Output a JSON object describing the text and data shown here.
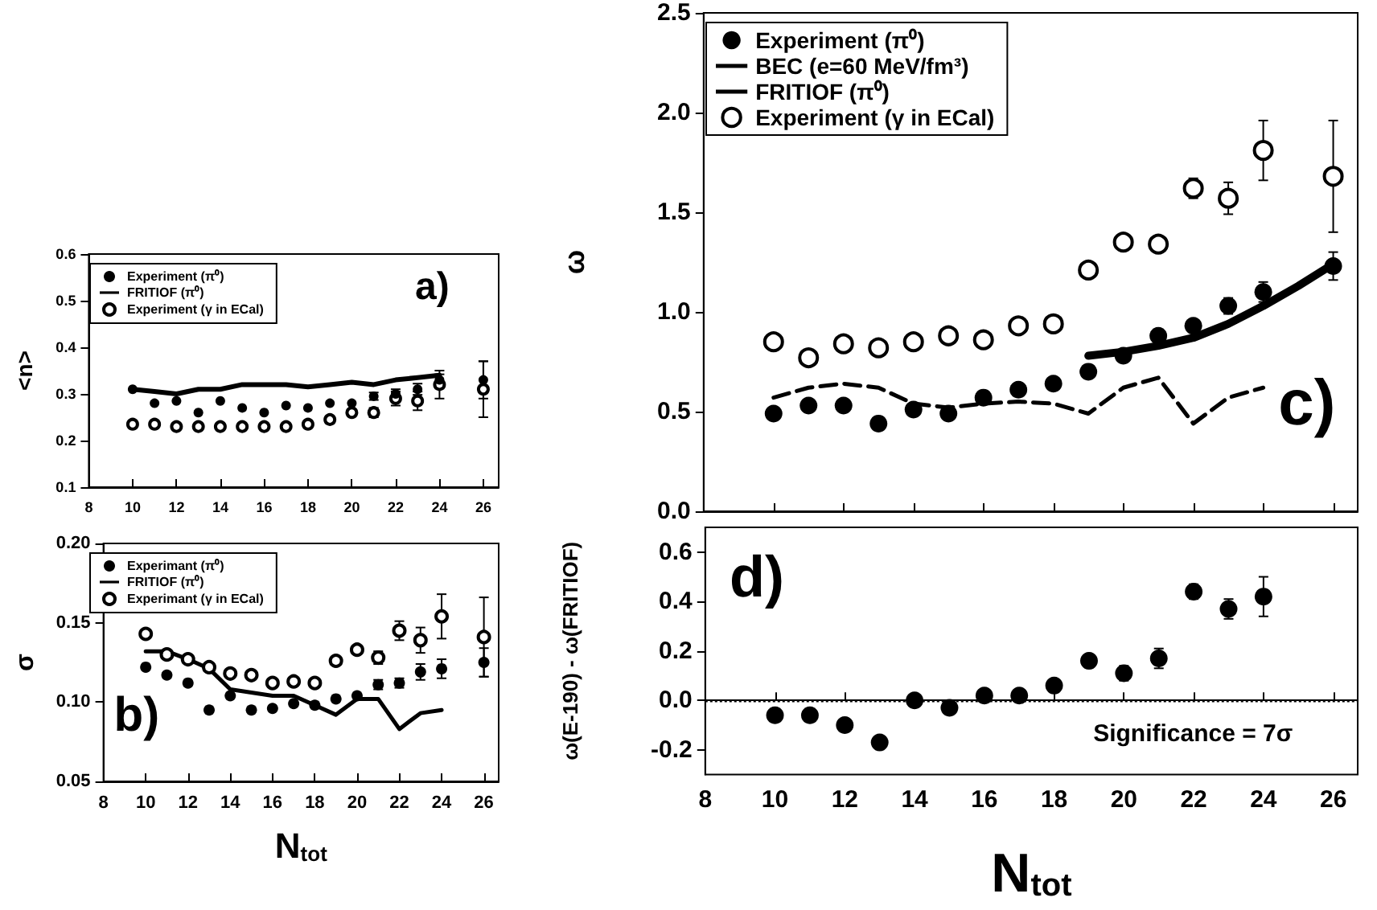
{
  "chart_data": [
    {
      "type": "scatter",
      "ylabel": "<n>",
      "xlim": [
        8,
        26.7
      ],
      "xticks": [
        8,
        10,
        12,
        14,
        16,
        18,
        20,
        22,
        24,
        26
      ],
      "ylim": [
        0.1,
        0.6
      ],
      "yticks": [
        0.1,
        0.2,
        0.3,
        0.4,
        0.5,
        0.6
      ],
      "legend": "top left",
      "grid": false,
      "annotations": [
        "a)"
      ],
      "series": [
        {
          "name": "Experiment (π⁰)",
          "type": "scatter",
          "marker": "circle",
          "color": "#000000",
          "x": [
            10,
            11,
            12,
            13,
            14,
            15,
            16,
            17,
            18,
            19,
            20,
            21,
            22,
            23,
            24,
            26
          ],
          "values": [
            0.31,
            0.28,
            0.285,
            0.26,
            0.285,
            0.27,
            0.26,
            0.275,
            0.27,
            0.28,
            0.28,
            0.295,
            0.3,
            0.31,
            0.33,
            0.33
          ],
          "errors": [
            null,
            null,
            null,
            null,
            null,
            null,
            null,
            null,
            null,
            null,
            null,
            0.008,
            0.01,
            0.012,
            0.012,
            0.04
          ]
        },
        {
          "name": "FRITIOF (π⁰)",
          "type": "line",
          "marker": "none",
          "line_style": "solid",
          "color": "#000000",
          "x": [
            10,
            11,
            12,
            13,
            14,
            15,
            16,
            17,
            18,
            19,
            20,
            21,
            22,
            23,
            24
          ],
          "values": [
            0.31,
            0.305,
            0.3,
            0.31,
            0.31,
            0.32,
            0.32,
            0.32,
            0.315,
            0.32,
            0.325,
            0.32,
            0.33,
            0.335,
            0.34
          ]
        },
        {
          "name": "Experiment (γ in ECal)",
          "type": "scatter",
          "marker": "circle-open",
          "color": "#000000",
          "x": [
            10,
            11,
            12,
            13,
            14,
            15,
            16,
            17,
            18,
            19,
            20,
            21,
            22,
            23,
            24,
            26
          ],
          "values": [
            0.235,
            0.235,
            0.23,
            0.23,
            0.23,
            0.23,
            0.23,
            0.23,
            0.235,
            0.245,
            0.26,
            0.26,
            0.29,
            0.285,
            0.32,
            0.31
          ],
          "errors": [
            null,
            null,
            null,
            null,
            null,
            null,
            null,
            null,
            null,
            null,
            null,
            0.01,
            0.015,
            0.02,
            0.03,
            0.06
          ]
        }
      ]
    },
    {
      "type": "scatter",
      "xlabel": "N$_{tot}$",
      "ylabel": "σ",
      "xlim": [
        8,
        26.7
      ],
      "xticks": [
        8,
        10,
        12,
        14,
        16,
        18,
        20,
        22,
        24,
        26
      ],
      "ylim": [
        0.05,
        0.2
      ],
      "yticks": [
        0.05,
        {
          "value": 0.1,
          "label": "0.10"
        },
        0.15,
        {
          "value": 0.2,
          "label": "0.20"
        }
      ],
      "legend": "top left",
      "grid": false,
      "annotations": [
        "b)"
      ],
      "series": [
        {
          "name": "Experimant (π⁰)",
          "type": "scatter",
          "marker": "circle",
          "color": "#000000",
          "x": [
            10,
            11,
            12,
            13,
            14,
            15,
            16,
            17,
            18,
            19,
            20,
            21,
            22,
            23,
            24,
            26
          ],
          "values": [
            0.122,
            0.117,
            0.112,
            0.095,
            0.104,
            0.095,
            0.096,
            0.099,
            0.098,
            0.102,
            0.104,
            0.111,
            0.112,
            0.119,
            0.121,
            0.125
          ],
          "errors": [
            null,
            null,
            null,
            null,
            null,
            null,
            null,
            null,
            null,
            null,
            null,
            0.003,
            0.003,
            0.005,
            0.006,
            0.009
          ]
        },
        {
          "name": "FRITIOF (π⁰)",
          "type": "line",
          "marker": "none",
          "line_style": "solid",
          "color": "#000000",
          "x": [
            10,
            11,
            12,
            13,
            14,
            15,
            16,
            17,
            18,
            19,
            20,
            21,
            22,
            23,
            24
          ],
          "values": [
            0.132,
            0.132,
            0.127,
            0.121,
            0.108,
            0.106,
            0.104,
            0.104,
            0.098,
            0.092,
            0.102,
            0.102,
            0.083,
            0.093,
            0.095
          ]
        },
        {
          "name": "Experimant (γ in ECal)",
          "type": "scatter",
          "marker": "circle-open",
          "color": "#000000",
          "x": [
            10,
            11,
            12,
            13,
            14,
            15,
            16,
            17,
            18,
            19,
            20,
            21,
            22,
            23,
            24,
            26
          ],
          "values": [
            0.143,
            0.13,
            0.127,
            0.122,
            0.118,
            0.117,
            0.112,
            0.113,
            0.112,
            0.126,
            0.133,
            0.128,
            0.145,
            0.139,
            0.154,
            0.141
          ],
          "errors": [
            null,
            null,
            null,
            null,
            null,
            null,
            null,
            null,
            null,
            null,
            null,
            0.004,
            0.006,
            0.008,
            0.014,
            0.025
          ]
        }
      ]
    },
    {
      "type": "scatter",
      "ylabel": "ω",
      "xlim": [
        8,
        26.7
      ],
      "xticks": [
        8,
        10,
        12,
        14,
        16,
        18,
        20,
        22,
        24,
        26
      ],
      "ylim": [
        0,
        2.5
      ],
      "yticks": [
        {
          "value": 0,
          "label": "0.0"
        },
        0.5,
        {
          "value": 1,
          "label": "1.0"
        },
        1.5,
        {
          "value": 2,
          "label": "2.0"
        },
        2.5
      ],
      "tick_labels": "y",
      "legend": "top left",
      "grid": false,
      "annotations": [
        "c)"
      ],
      "series": [
        {
          "name": "Experiment (π⁰)",
          "type": "scatter",
          "marker": "circle",
          "color": "#000000",
          "x": [
            10,
            11,
            12,
            13,
            14,
            15,
            16,
            17,
            18,
            19,
            20,
            21,
            22,
            23,
            24,
            26
          ],
          "values": [
            0.49,
            0.53,
            0.53,
            0.44,
            0.51,
            0.49,
            0.57,
            0.61,
            0.64,
            0.7,
            0.78,
            0.88,
            0.93,
            1.03,
            1.1,
            1.23
          ],
          "errors": [
            null,
            null,
            null,
            null,
            null,
            null,
            null,
            null,
            null,
            null,
            null,
            null,
            0.03,
            0.04,
            0.05,
            0.07
          ]
        },
        {
          "name": "BEC (e=60 MeV/fm³)",
          "type": "line",
          "marker": "none",
          "line_style": "solid",
          "color": "#000000",
          "x": [
            19,
            20,
            21,
            22,
            23,
            24,
            25,
            26
          ],
          "values": [
            0.78,
            0.8,
            0.83,
            0.87,
            0.94,
            1.03,
            1.13,
            1.24
          ]
        },
        {
          "name": "FRITIOF (π⁰)",
          "type": "line",
          "marker": "none",
          "line_style": "dashed",
          "color": "#000000",
          "x": [
            10,
            11,
            12,
            13,
            14,
            15,
            16,
            17,
            18,
            19,
            20,
            21,
            22,
            23,
            24
          ],
          "values": [
            0.57,
            0.62,
            0.64,
            0.62,
            0.54,
            0.52,
            0.54,
            0.55,
            0.54,
            0.49,
            0.62,
            0.67,
            0.44,
            0.57,
            0.62
          ]
        },
        {
          "name": "Experiment (γ in ECal)",
          "type": "scatter",
          "marker": "circle-open",
          "color": "#000000",
          "x": [
            10,
            11,
            12,
            13,
            14,
            15,
            16,
            17,
            18,
            19,
            20,
            21,
            22,
            23,
            24,
            26
          ],
          "values": [
            0.85,
            0.77,
            0.84,
            0.82,
            0.85,
            0.88,
            0.86,
            0.93,
            0.94,
            1.21,
            1.35,
            1.34,
            1.62,
            1.57,
            1.81,
            1.68
          ],
          "errors": [
            null,
            null,
            null,
            null,
            null,
            null,
            null,
            null,
            null,
            null,
            null,
            null,
            0.05,
            0.08,
            0.15,
            0.28
          ]
        }
      ]
    },
    {
      "type": "scatter",
      "xlabel": "N$_{tot}$",
      "ylabel": "ω(E-190) - ω(FRITIOF)",
      "xlim": [
        8,
        26.7
      ],
      "xticks": [
        8,
        10,
        12,
        14,
        16,
        18,
        20,
        22,
        24,
        26
      ],
      "ylim": [
        -0.3,
        0.7
      ],
      "yticks": [
        -0.2,
        {
          "value": 0,
          "label": "0.0"
        },
        0.2,
        0.4,
        0.6
      ],
      "grid": false,
      "annotations": [
        "d)",
        "Significance = 7σ"
      ],
      "ref_lines": [
        {
          "axis": "y",
          "value": 0,
          "color": "#000000",
          "line_style": "dotted"
        }
      ],
      "series": [
        {
          "type": "scatter",
          "marker": "circle",
          "color": "#000000",
          "x": [
            10,
            11,
            12,
            13,
            14,
            15,
            16,
            17,
            18,
            19,
            20,
            21,
            22,
            23,
            24
          ],
          "values": [
            -0.06,
            -0.06,
            -0.1,
            -0.17,
            0.0,
            -0.03,
            0.02,
            0.02,
            0.06,
            0.16,
            0.11,
            0.17,
            0.44,
            0.37,
            0.42
          ],
          "errors": [
            null,
            null,
            null,
            null,
            null,
            null,
            null,
            null,
            null,
            0.02,
            0.03,
            0.04,
            0.03,
            0.04,
            0.08
          ]
        }
      ]
    }
  ]
}
